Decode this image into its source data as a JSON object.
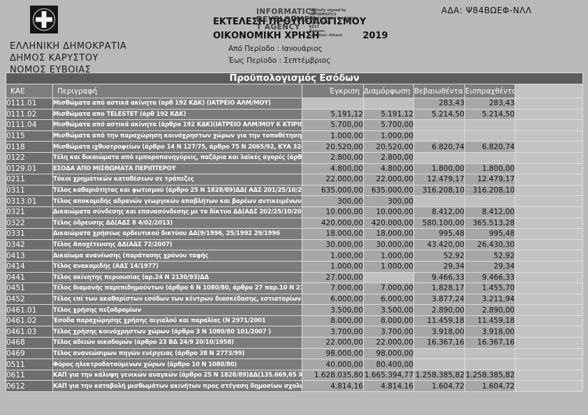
{
  "ada": "ΑΔΑ: Ψ84ΒΩΕΦ-ΝΛΛ",
  "header": {
    "left_lines": [
      "ΕΛΛΗΝΙΚΗ ΔΗΜΟΚΡΑΤΙΑ",
      "ΔΗΜΟΣ ΚΑΡΥΣΤΟΥ",
      "ΝΟΜΟΣ ΕΥΒΟΙΑΣ"
    ],
    "center": {
      "title1": "ΕΚΤΕΛΕΣΗ ΠΡΟΫΠΟΛΟΓΙΣΜΟΥ",
      "title2": "ΟΙΚΟΝΟΜΙΚΗ ΧΡΗΣΗ",
      "year": "2019",
      "period_from_label": "Από Περίοδο :",
      "period_from": "Ιανουάριος",
      "period_to_label": "Έως Περίοδο :",
      "period_to": "Σεπτέμβριος"
    },
    "stamp": {
      "big_lines": [
        "INFORMATICS",
        "DEVELOPMEN",
        "T AGENCY"
      ],
      "small_lines": [
        "Digitally signed by",
        "INFORMATICS",
        "DEVELOPMEN T AGENCY",
        "Date: 2019",
        "EEST",
        "Reason:",
        "Location: Athens"
      ]
    }
  },
  "table": {
    "band_title": "Προϋπολογισμός Εσόδων",
    "columns": [
      "ΚΑΕ",
      "Περιγραφή",
      "Έγκριση",
      "Διαμόρφωση",
      "Βεβαιωθέντα",
      "Εισπραχθέντα"
    ],
    "rows": [
      {
        "kae": "0111.01",
        "desc": "Μισθώματα από αστικά ακίνητα (αρθ 192 ΚΔΚ)  (ΙΑΤΡΕΙΟ ΑΛΜ/ΜΟΥ)",
        "egkrisi": "",
        "diamorfosi": "",
        "bebaiothenta": "283,43",
        "eispraxthenta": "283,43"
      },
      {
        "kae": "0111.02",
        "desc": "Μισθώματα απο TELESTET (άρθ 192 ΚΔΚ)",
        "egkrisi": "5.191,12",
        "diamorfosi": "5.191,12",
        "bebaiothenta": "5.214,50",
        "eispraxthenta": "5.214,50"
      },
      {
        "kae": "0111.04",
        "desc": "Μισθώματα από αστικά ακίνητα (άρθρο 192 ΚΔΚ)(ΙΑΤΡΕΙΟ ΑΛΜ/ΜΟΥ Κ ΚΤΙΡΙΟ ΟΤΕ)",
        "egkrisi": "5.700,00",
        "diamorfosi": "5.700,00",
        "bebaiothenta": "",
        "eispraxthenta": ""
      },
      {
        "kae": "0115",
        "desc": "Μισθώματα από την παραχώρηση κοινόχρηστων χώρων για την τοποθέτηση διαφημιστικών μέσων (άρ",
        "egkrisi": "1.000,00",
        "diamorfosi": "1.000,00",
        "bebaiothenta": "",
        "eispraxthenta": ""
      },
      {
        "kae": "0118",
        "desc": "Μισθώματα ιχθυοτροφείων (άρθρο 14 Ν 127/75, άρθρο 75 Ν 2065/92, ΚΥΑ 32489/82)ΚΥΠ' ΑΡΙΘΜ 474",
        "egkrisi": "20.520,00",
        "diamorfosi": "20.520,00",
        "bebaiothenta": "6.820,74",
        "eispraxthenta": "6.820,74"
      },
      {
        "kae": "0122",
        "desc": "Τέλη και δικαιώματα από εμποροπανηγύρεις, παζάρια και λαϊκές αγορές (άρθρο 19 ΒΔ 24/9 20/10/1958",
        "egkrisi": "2.800,00",
        "diamorfosi": "2.800,00",
        "bebaiothenta": "",
        "eispraxthenta": ""
      },
      {
        "kae": "0129.01",
        "desc": "ΕΣΟΔΑ ΑΠΟ ΜΙΣΘΩΜΑΤΑ ΠΕΡΙΠΤΕΡΟΥ",
        "egkrisi": "4.800,00",
        "diamorfosi": "4.800,00",
        "bebaiothenta": "1.800,00",
        "eispraxthenta": "1.800,00"
      },
      {
        "kae": "0211",
        "desc": "Τόκοι χρηματικών καταθέσεων σε τράπεζες",
        "egkrisi": "22.000,00",
        "diamorfosi": "22.000,00",
        "bebaiothenta": "12.479,17",
        "eispraxthenta": "12.479,17"
      },
      {
        "kae": "0311",
        "desc": "Τέλος καθαριότητας και φωτισμού (άρθρο 25 Ν 1828/89)ΔΔ( ΑΔΣ 201/25/10/2007)",
        "egkrisi": "635.000,00",
        "diamorfosi": "635.000,00",
        "bebaiothenta": "316.208,10",
        "eispraxthenta": "316.208,10"
      },
      {
        "kae": "0313.01",
        "desc": "Τέλος αποκομιδής αδρανών γεωργικών αποβλήτων και βαρέων αντικειμένων  ΔΔ(ΑΔΣ 100/4/05/2007)",
        "egkrisi": "300,00",
        "diamorfosi": "300,00",
        "bebaiothenta": "",
        "eispraxthenta": ""
      },
      {
        "kae": "0321",
        "desc": "Δικαιώματα σύνδεσης και επανασύνδεσης με το δίκτυο ΔΔ(ΑΔΣ 202/25/10/2007",
        "egkrisi": "10.000,00",
        "diamorfosi": "10.000,00",
        "bebaiothenta": "8.412,00",
        "eispraxthenta": "8.412,00"
      },
      {
        "kae": "0322",
        "desc": "Τέλος ύδρευσης ΔΔ(ΑΔΣ 8  4/02/2013)",
        "egkrisi": "420.000,00",
        "diamorfosi": "420.000,00",
        "bebaiothenta": "580.100,00",
        "eispraxthenta": "365.513,28"
      },
      {
        "kae": "0331",
        "desc": "Δικαιώματα χρήσεως αρδευτικού δικτύου ΔΔ(9/1996, 25/1992 29/1996",
        "egkrisi": "18.000,00",
        "diamorfosi": "18.000,00",
        "bebaiothenta": "995,48",
        "eispraxthenta": "995,48"
      },
      {
        "kae": "0342",
        "desc": "Τέλος Αποχέτευσης ΔΔ(ΑΔΣ 72/2007)",
        "egkrisi": "30.000,00",
        "diamorfosi": "30.000,00",
        "bebaiothenta": "43.420,00",
        "eispraxthenta": "26.430,30"
      },
      {
        "kae": "0413",
        "desc": "Δικαίωμα ανανέωσης (παράτασης χρόνου ταφής",
        "egkrisi": "1.000,00",
        "diamorfosi": "1.000,00",
        "bebaiothenta": "52,92",
        "eispraxthenta": "52,92"
      },
      {
        "kae": "0414",
        "desc": "Τέλος ανακομιδής (ΑΔΣ 14/1977)",
        "egkrisi": "1.000,00",
        "diamorfosi": "1.000,00",
        "bebaiothenta": "29,34",
        "eispraxthenta": "29,34"
      },
      {
        "kae": "0441",
        "desc": "Τέλος ακίνητης περιουσίας (αρ.24 Ν 2130/93)ΔΔ",
        "egkrisi": "27.000,00",
        "diamorfosi": "",
        "bebaiothenta": "9.466,33",
        "eispraxthenta": "9.466,33"
      },
      {
        "kae": "0451",
        "desc": "Τέλος διαμονής παρεπιδημούντων (άρθρο 6 Ν 1080/80, άρθρο 27 παρ.10 Ν 2130/93)",
        "egkrisi": "7.000,00",
        "diamorfosi": "7.000,00",
        "bebaiothenta": "1.828,17",
        "eispraxthenta": "1.455,70"
      },
      {
        "kae": "0452",
        "desc": "Τέλος επί των ακαθαρίστων εσόδων των κέντρων διασκέδασης, εστιατορίων και συναφών καταστημάτω",
        "egkrisi": "6.000,00",
        "diamorfosi": "6.000,00",
        "bebaiothenta": "3.877,24",
        "eispraxthenta": "3.211,94"
      },
      {
        "kae": "0461.01",
        "desc": "Τέλος χρήσης πεζοδρομίων",
        "egkrisi": "3.500,00",
        "diamorfosi": "3.500,00",
        "bebaiothenta": "2.890,00",
        "eispraxthenta": "2.890,00"
      },
      {
        "kae": "0461.02",
        "desc": "Έσοδα παραχώρησης χρήσης αιγιαλού και παραλίας (Ν 2971/2001",
        "egkrisi": "8.000,00",
        "diamorfosi": "8.000,00",
        "bebaiothenta": "11.459,18",
        "eispraxthenta": "11.459,18"
      },
      {
        "kae": "0461.03",
        "desc": "Τέλος χρήσης κοινόχρηστων χώρων (άρθρο 3 Ν 1080/80 101/2007 )",
        "egkrisi": "3.700,00",
        "diamorfosi": "3.700,00",
        "bebaiothenta": "3.918,00",
        "eispraxthenta": "3.918,00"
      },
      {
        "kae": "0468",
        "desc": "Τέλος αδειών οικοδομών (άρθρο 23 ΒΔ 24/9 20/10/1958)",
        "egkrisi": "22.000,00",
        "diamorfosi": "22.000,00",
        "bebaiothenta": "16.367,16",
        "eispraxthenta": "16.367,16"
      },
      {
        "kae": "0469",
        "desc": "Τέλος ανανεώσιμων πηγών ενέργειας (άρθρο 38 Ν 2773/99)",
        "egkrisi": "98.000,00",
        "diamorfosi": "98.000,00",
        "bebaiothenta": "",
        "eispraxthenta": ""
      },
      {
        "kae": "0511",
        "desc": "Φόρος ηλεκτροδοτούμενων χώρων (άρθρο 10 Ν 1080/80)",
        "egkrisi": "40.000,00",
        "diamorfosi": "80.400,00",
        "bebaiothenta": "",
        "eispraxthenta": ""
      },
      {
        "kae": "0611",
        "desc": "ΚΑΠ για την κάλυψη γενικών αναγκών (άρθρο 25 Ν 1828/89)ΔΔ(135.669,65 Χ12 )",
        "egkrisi": "1.628.035,80",
        "diamorfosi": "1.665.394,77",
        "bebaiothenta": "1.258.385,82",
        "eispraxthenta": "1.258.385,82"
      },
      {
        "kae": "0612",
        "desc": "ΚΑΠ για την καταβολή μισθωμάτων ακινήτων προς στέγαση  δημοσίων  σχολικών ΔΔ μονάδων & Υπηρ",
        "egkrisi": "4.814,16",
        "diamorfosi": "4.814,16",
        "bebaiothenta": "1.604,72",
        "eispraxthenta": "1.604,72"
      }
    ]
  },
  "colors": {
    "page_bg": "#b9b9b9",
    "band": "#5c5c5c",
    "header_row": "#7e7e7e",
    "kae_cell": "#6e6e6e",
    "desc_cell": "#7b7b7b",
    "value_cell": "#a7a7a7",
    "empty_cell": "#c0c0c0"
  }
}
